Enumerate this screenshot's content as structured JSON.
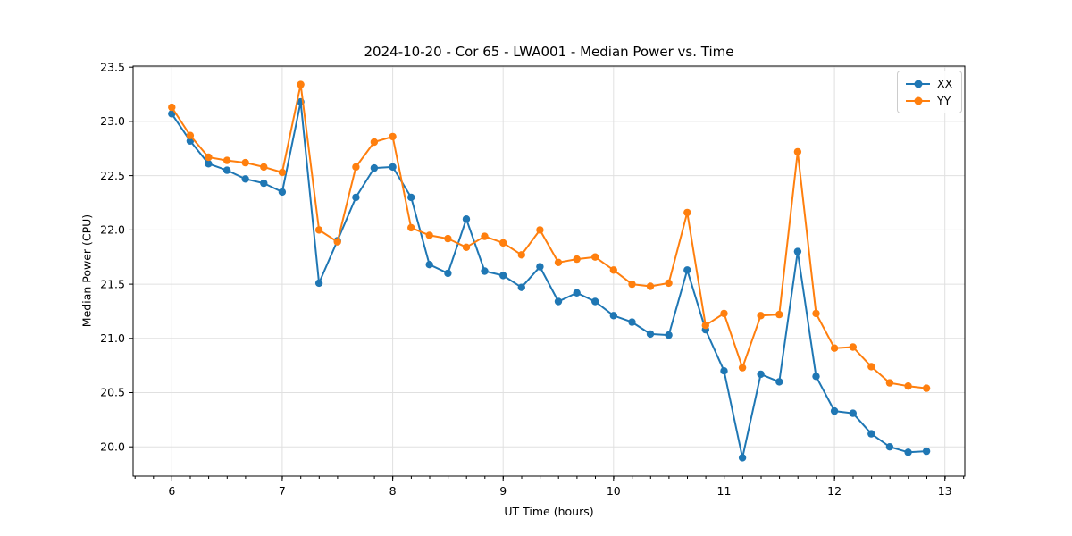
{
  "chart_data": {
    "type": "line",
    "title": "2024-10-20 - Cor 65 - LWA001 - Median Power vs. Time",
    "xlabel": "UT Time (hours)",
    "ylabel": "Median Power (CPU)",
    "xlim": [
      5.65,
      13.18
    ],
    "ylim": [
      19.73,
      23.51
    ],
    "x_ticks": [
      6,
      7,
      8,
      9,
      10,
      11,
      12,
      13
    ],
    "y_ticks": [
      20.0,
      20.5,
      21.0,
      21.5,
      22.0,
      22.5,
      23.0,
      23.5
    ],
    "x_minor_tick_step": 0.1667,
    "grid": true,
    "grid_color": "#e0e0e0",
    "background": "#ffffff",
    "legend": {
      "position": "upper right",
      "entries": [
        "XX",
        "YY"
      ]
    },
    "x": [
      6.0,
      6.167,
      6.333,
      6.5,
      6.667,
      6.833,
      7.0,
      7.167,
      7.333,
      7.5,
      7.667,
      7.833,
      8.0,
      8.167,
      8.333,
      8.5,
      8.667,
      8.833,
      9.0,
      9.167,
      9.333,
      9.5,
      9.667,
      9.833,
      10.0,
      10.167,
      10.333,
      10.5,
      10.667,
      10.833,
      11.0,
      11.167,
      11.333,
      11.5,
      11.667,
      11.833,
      12.0,
      12.167,
      12.333,
      12.5,
      12.667,
      12.833
    ],
    "series": [
      {
        "name": "XX",
        "color": "#1f77b4",
        "marker": "circle",
        "values": [
          23.07,
          22.82,
          22.61,
          22.55,
          22.47,
          22.43,
          22.35,
          23.18,
          21.51,
          21.9,
          22.3,
          22.57,
          22.58,
          22.3,
          21.68,
          21.6,
          22.1,
          21.62,
          21.58,
          21.47,
          21.66,
          21.34,
          21.42,
          21.34,
          21.21,
          21.15,
          21.04,
          21.03,
          21.63,
          21.08,
          20.7,
          19.9,
          20.67,
          20.6,
          21.8,
          20.65,
          20.33,
          20.31,
          20.12,
          20.0,
          19.95,
          19.96
        ]
      },
      {
        "name": "YY",
        "color": "#ff7f0e",
        "marker": "circle",
        "values": [
          23.13,
          22.87,
          22.67,
          22.64,
          22.62,
          22.58,
          22.53,
          23.34,
          22.0,
          21.89,
          22.58,
          22.81,
          22.86,
          22.02,
          21.95,
          21.92,
          21.84,
          21.94,
          21.88,
          21.77,
          22.0,
          21.7,
          21.73,
          21.75,
          21.63,
          21.5,
          21.48,
          21.51,
          22.16,
          21.12,
          21.23,
          20.73,
          21.21,
          21.22,
          22.72,
          21.23,
          20.91,
          20.92,
          20.74,
          20.59,
          20.56,
          20.54
        ]
      }
    ]
  }
}
